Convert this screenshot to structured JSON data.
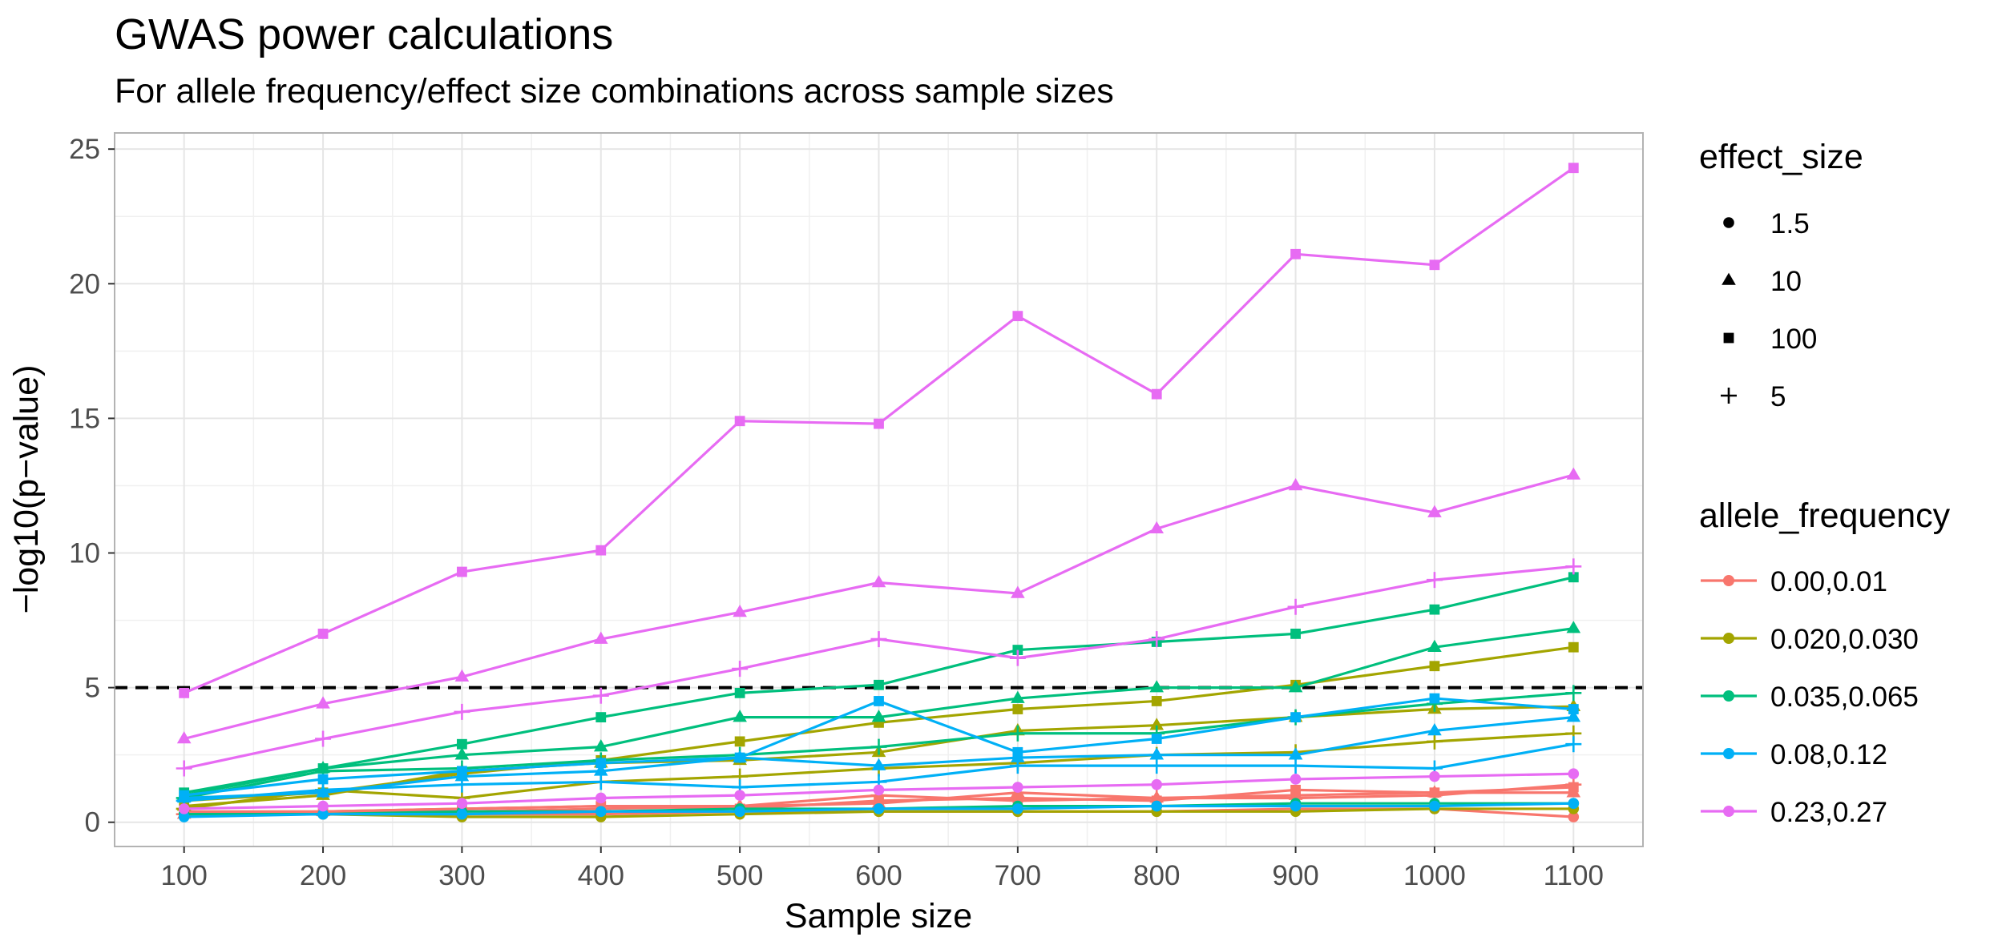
{
  "chart_data": {
    "type": "line",
    "title": "GWAS power calculations",
    "subtitle": "For allele frequency/effect size combinations across sample sizes",
    "xlabel": "Sample size",
    "ylabel": "−log10(p−value)",
    "x": [
      100,
      200,
      300,
      400,
      500,
      600,
      700,
      800,
      900,
      1000,
      1100
    ],
    "x_ticks": [
      "100",
      "200",
      "300",
      "400",
      "500",
      "600",
      "700",
      "800",
      "900",
      "1000",
      "1100"
    ],
    "y_ticks": [
      "0",
      "5",
      "10",
      "15",
      "20",
      "25"
    ],
    "xlim": [
      50,
      1150
    ],
    "ylim": [
      -0.9,
      25.6
    ],
    "grid": true,
    "reference_line": {
      "y": 5,
      "style": "dashed",
      "color": "#000000"
    },
    "legend_color": {
      "title": "allele_frequency",
      "placement": "right",
      "entries": [
        {
          "label": "0.00,0.01",
          "color": "#F8766D"
        },
        {
          "label": "0.020,0.030",
          "color": "#A3A500"
        },
        {
          "label": "0.035,0.065",
          "color": "#00BF7D"
        },
        {
          "label": "0.08,0.12",
          "color": "#00B0F6"
        },
        {
          "label": "0.23,0.27",
          "color": "#E76BF3"
        }
      ]
    },
    "legend_shape": {
      "title": "effect_size",
      "placement": "right",
      "entries": [
        {
          "label": "1.5",
          "shape": "circle"
        },
        {
          "label": "10",
          "shape": "triangle"
        },
        {
          "label": "100",
          "shape": "square"
        },
        {
          "label": "5",
          "shape": "plus"
        }
      ]
    },
    "series": [
      {
        "allele_frequency": "0.23,0.27",
        "effect_size": "100",
        "color": "#E76BF3",
        "shape": "square",
        "values": [
          4.8,
          7.0,
          9.3,
          10.1,
          14.9,
          14.8,
          18.8,
          15.9,
          21.1,
          20.7,
          24.3
        ]
      },
      {
        "allele_frequency": "0.23,0.27",
        "effect_size": "10",
        "color": "#E76BF3",
        "shape": "triangle",
        "values": [
          3.1,
          4.4,
          5.4,
          6.8,
          7.8,
          8.9,
          8.5,
          10.9,
          12.5,
          11.5,
          12.9
        ]
      },
      {
        "allele_frequency": "0.23,0.27",
        "effect_size": "5",
        "color": "#E76BF3",
        "shape": "plus",
        "values": [
          2.0,
          3.1,
          4.1,
          4.7,
          5.7,
          6.8,
          6.1,
          6.8,
          8.0,
          9.0,
          9.5
        ]
      },
      {
        "allele_frequency": "0.23,0.27",
        "effect_size": "1.5",
        "color": "#E76BF3",
        "shape": "circle",
        "values": [
          0.5,
          0.6,
          0.7,
          0.9,
          1.0,
          1.2,
          1.3,
          1.4,
          1.6,
          1.7,
          1.8
        ]
      },
      {
        "allele_frequency": "0.035,0.065",
        "effect_size": "100",
        "color": "#00BF7D",
        "shape": "square",
        "values": [
          1.1,
          2.0,
          2.9,
          3.9,
          4.8,
          5.1,
          6.4,
          6.7,
          7.0,
          7.9,
          9.1
        ]
      },
      {
        "allele_frequency": "0.035,0.065",
        "effect_size": "10",
        "color": "#00BF7D",
        "shape": "triangle",
        "values": [
          1.0,
          2.0,
          2.5,
          2.8,
          3.9,
          3.9,
          4.6,
          5.0,
          5.0,
          6.5,
          7.2
        ]
      },
      {
        "allele_frequency": "0.035,0.065",
        "effect_size": "5",
        "color": "#00BF7D",
        "shape": "plus",
        "values": [
          0.9,
          1.9,
          2.0,
          2.3,
          2.5,
          2.8,
          3.3,
          3.3,
          3.9,
          4.4,
          4.8
        ]
      },
      {
        "allele_frequency": "0.035,0.065",
        "effect_size": "1.5",
        "color": "#00BF7D",
        "shape": "circle",
        "values": [
          0.3,
          0.3,
          0.4,
          0.4,
          0.5,
          0.5,
          0.6,
          0.6,
          0.7,
          0.7,
          0.7
        ]
      },
      {
        "allele_frequency": "0.020,0.030",
        "effect_size": "100",
        "color": "#A3A500",
        "shape": "square",
        "values": [
          0.8,
          1.1,
          1.8,
          2.3,
          3.0,
          3.7,
          4.2,
          4.5,
          5.1,
          5.8,
          6.5
        ]
      },
      {
        "allele_frequency": "0.020,0.030",
        "effect_size": "10",
        "color": "#A3A500",
        "shape": "triangle",
        "values": [
          0.6,
          1.0,
          1.9,
          2.2,
          2.3,
          2.6,
          3.4,
          3.6,
          3.9,
          4.2,
          4.3
        ]
      },
      {
        "allele_frequency": "0.020,0.030",
        "effect_size": "5",
        "color": "#A3A500",
        "shape": "plus",
        "values": [
          0.5,
          1.2,
          0.9,
          1.5,
          1.7,
          2.0,
          2.2,
          2.5,
          2.6,
          3.0,
          3.3
        ]
      },
      {
        "allele_frequency": "0.020,0.030",
        "effect_size": "1.5",
        "color": "#A3A500",
        "shape": "circle",
        "values": [
          0.3,
          0.3,
          0.2,
          0.2,
          0.3,
          0.4,
          0.4,
          0.4,
          0.4,
          0.5,
          0.5
        ]
      },
      {
        "allele_frequency": "0.08,0.12",
        "effect_size": "100",
        "color": "#00B0F6",
        "shape": "square",
        "values": [
          1.0,
          1.6,
          1.9,
          2.2,
          2.4,
          4.5,
          2.6,
          3.1,
          3.9,
          4.6,
          4.2
        ]
      },
      {
        "allele_frequency": "0.08,0.12",
        "effect_size": "10",
        "color": "#00B0F6",
        "shape": "triangle",
        "values": [
          0.9,
          1.1,
          1.7,
          1.9,
          2.4,
          2.1,
          2.4,
          2.5,
          2.5,
          3.4,
          3.9
        ]
      },
      {
        "allele_frequency": "0.08,0.12",
        "effect_size": "5",
        "color": "#00B0F6",
        "shape": "plus",
        "values": [
          0.8,
          1.2,
          1.4,
          1.5,
          1.3,
          1.5,
          2.1,
          2.1,
          2.1,
          2.0,
          2.9
        ]
      },
      {
        "allele_frequency": "0.08,0.12",
        "effect_size": "1.5",
        "color": "#00B0F6",
        "shape": "circle",
        "values": [
          0.2,
          0.3,
          0.3,
          0.4,
          0.4,
          0.5,
          0.5,
          0.6,
          0.6,
          0.6,
          0.7
        ]
      },
      {
        "allele_frequency": "0.00,0.01",
        "effect_size": "100",
        "color": "#F8766D",
        "shape": "square",
        "values": [
          0.4,
          0.4,
          0.5,
          0.6,
          0.5,
          0.8,
          0.9,
          0.8,
          1.2,
          1.1,
          1.3
        ]
      },
      {
        "allele_frequency": "0.00,0.01",
        "effect_size": "10",
        "color": "#F8766D",
        "shape": "triangle",
        "values": [
          0.3,
          0.4,
          0.4,
          0.5,
          0.6,
          0.7,
          1.1,
          0.9,
          1.0,
          1.1,
          1.1
        ]
      },
      {
        "allele_frequency": "0.00,0.01",
        "effect_size": "5",
        "color": "#F8766D",
        "shape": "plus",
        "values": [
          0.3,
          0.4,
          0.5,
          0.6,
          0.6,
          1.0,
          0.8,
          0.9,
          0.9,
          1.0,
          1.4
        ]
      },
      {
        "allele_frequency": "0.00,0.01",
        "effect_size": "1.5",
        "color": "#F8766D",
        "shape": "circle",
        "values": [
          0.3,
          0.3,
          0.3,
          0.3,
          0.4,
          0.4,
          0.4,
          0.4,
          0.5,
          0.5,
          0.2
        ]
      }
    ]
  }
}
